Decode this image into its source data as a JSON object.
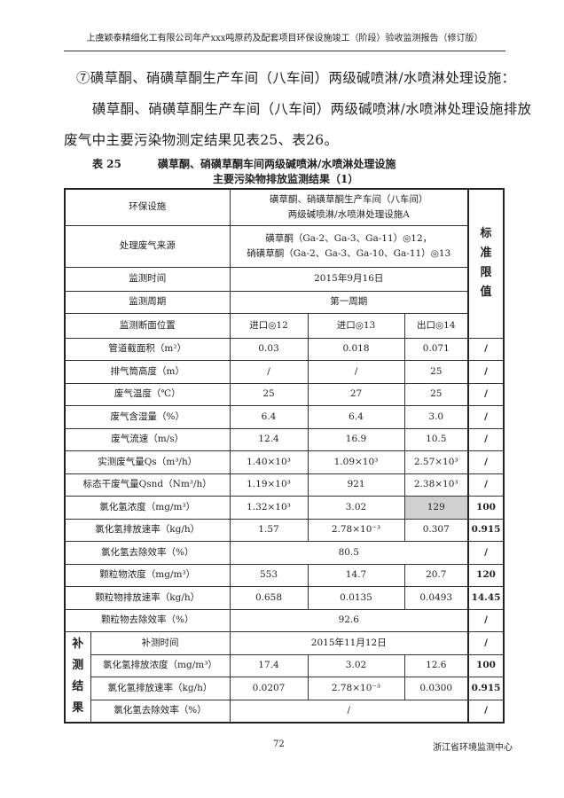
{
  "header": "上虞颖泰精细化工有限公司年产xxx吨原药及配套项目环保设施竣工（阶段）验收监测报告（修订版）",
  "heading": "⑦磺草酮、硝磺草酮生产车间（八车间）两级碱喷淋/水喷淋处理设施：",
  "paragraph_line1": "磺草酮、硝磺草酮生产车间（八车间）两级碱喷淋/水喷淋处理设施排放",
  "paragraph_line2": "废气中主要污染物测定结果见表25、表26。",
  "caption": {
    "number": "表 25",
    "title_line1": "磺草酮、硝磺草酮车间两级碱喷淋/水喷淋处理设施",
    "title_line2": "主要污染物排放监测结果（1）"
  },
  "table": {
    "facility_label": "环保设施",
    "facility_value_1": "磺草酮、硝磺草酮生产车间（八车间）",
    "facility_value_2": "两级碱喷淋/水喷淋处理设施A",
    "source_label": "处理废气来源",
    "source_value_1": "磺草酮（Ga-2、Ga-3、Ga-11）◎12，",
    "source_value_2": "硝磺草酮（Ga-2、Ga-3、Ga-10、Ga-11）◎13",
    "std_header": "标准限值",
    "time_label": "监测时间",
    "time_value": "2015年9月16日",
    "period_label": "监测周期",
    "period_value": "第一周期",
    "section_label": "监测断面位置",
    "sections": [
      "进口◎12",
      "进口◎13",
      "出口◎14"
    ],
    "rows": [
      {
        "label": "管道截面积（m²）",
        "values": [
          "0.03",
          "0.018",
          "0.071"
        ],
        "std": "/"
      },
      {
        "label": "排气筒高度（m）",
        "values": [
          "/",
          "/",
          "25"
        ],
        "std": "/"
      },
      {
        "label": "废气温度（℃）",
        "values": [
          "25",
          "27",
          "25"
        ],
        "std": "/"
      },
      {
        "label": "废气含湿量（%）",
        "values": [
          "6.4",
          "6.4",
          "3.0"
        ],
        "std": "/"
      },
      {
        "label": "废气流速（m/s）",
        "values": [
          "12.4",
          "16.9",
          "10.5"
        ],
        "std": "/"
      },
      {
        "label": "实测废气量Qs（m³/h）",
        "values": [
          "1.40×10³",
          "1.09×10³",
          "2.57×10³"
        ],
        "std": "/"
      },
      {
        "label": "标态干废气量Qsnd（Nm³/h）",
        "values": [
          "1.19×10³",
          "921",
          "2.38×10³"
        ],
        "std": "/"
      },
      {
        "label": "氯化氢浓度（mg/m³）",
        "values": [
          "1.32×10³",
          "3.02",
          "129"
        ],
        "std": "100"
      },
      {
        "label": "氯化氢排放速率（kg/h）",
        "values": [
          "1.57",
          "2.78×10⁻³",
          "0.307"
        ],
        "std": "0.915"
      },
      {
        "label": "氯化氢去除效率（%）",
        "merged": "80.5",
        "std": "/"
      },
      {
        "label": "颗粒物浓度（mg/m³）",
        "values": [
          "553",
          "14.7",
          "20.7"
        ],
        "std": "120"
      },
      {
        "label": "颗粒物排放速率（kg/h）",
        "values": [
          "0.658",
          "0.0135",
          "0.0493"
        ],
        "std": "14.45"
      },
      {
        "label": "颗粒物去除效率（%）",
        "merged": "92.6",
        "std": "/"
      }
    ],
    "supplement_label": "补测结果",
    "supplement_chars": [
      "补",
      "测",
      "结",
      "果"
    ],
    "supplement_rows": [
      {
        "label": "补测时间",
        "merged": "2015年11月12日",
        "std": "/"
      },
      {
        "label": "氯化氢排放浓度（mg/m³）",
        "values": [
          "17.4",
          "3.02",
          "12.6"
        ],
        "std": "100"
      },
      {
        "label": "氯化氢排放速率（kg/h）",
        "values": [
          "0.0207",
          "2.78×10⁻³",
          "0.0300"
        ],
        "std": "0.915"
      },
      {
        "label": "氯化氢去除效率（%）",
        "merged": "/",
        "std": "/"
      }
    ],
    "highlight_color": "#d0d0d0"
  },
  "footer": {
    "page": "72",
    "org": "浙江省环境监测中心"
  }
}
